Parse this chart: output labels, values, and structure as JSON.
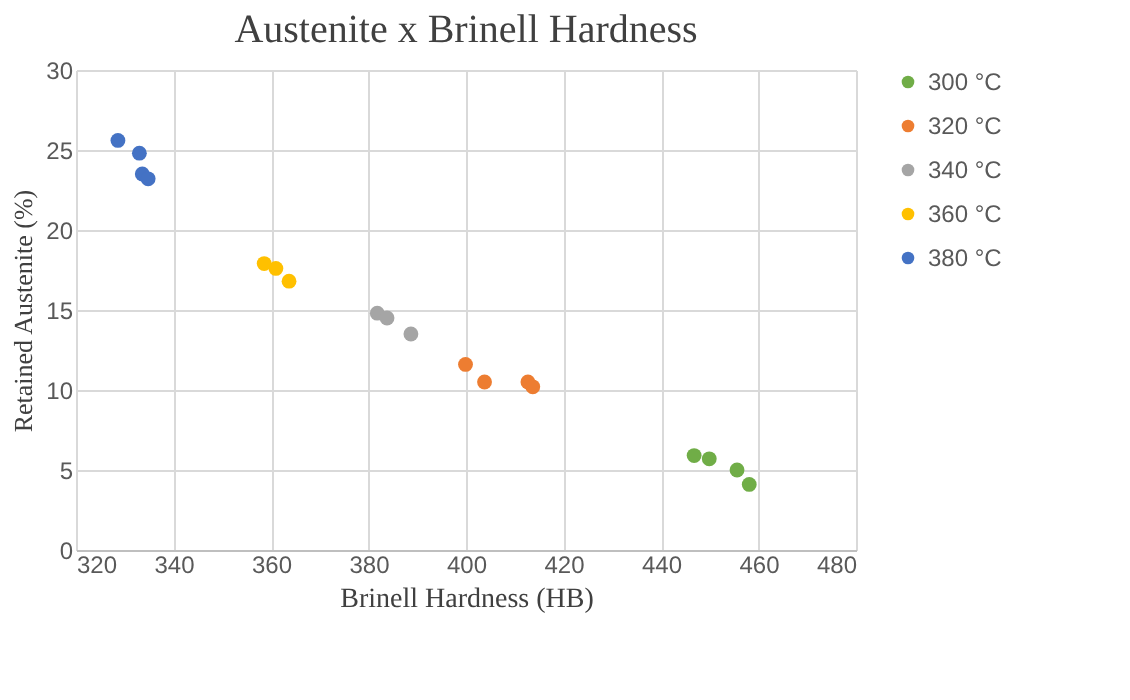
{
  "chart_data": {
    "type": "scatter",
    "title": "Austenite x Brinell Hardness",
    "xlabel": "Brinell Hardness (HB)",
    "ylabel": "Retained Austenite (%)",
    "xlim": [
      320,
      480
    ],
    "xticks": [
      320,
      340,
      360,
      380,
      400,
      420,
      440,
      460,
      480
    ],
    "ylim": [
      0,
      30
    ],
    "yticks": [
      0,
      5,
      10,
      15,
      20,
      25,
      30
    ],
    "grid": true,
    "legend": "right",
    "marker": "circle",
    "series": [
      {
        "name": "300 °C",
        "color": "#70ad47",
        "x": [
          446.8,
          449.9,
          455.6,
          458.1
        ],
        "values": [
          5.9,
          5.7,
          5.0,
          4.1
        ]
      },
      {
        "name": "320 °C",
        "color": "#ed7d31",
        "x": [
          399.9,
          403.8,
          412.7,
          413.7
        ],
        "values": [
          11.6,
          10.5,
          10.5,
          10.2
        ]
      },
      {
        "name": "340 °C",
        "color": "#a5a5a5",
        "x": [
          381.8,
          383.8,
          388.7
        ],
        "values": [
          14.8,
          14.5,
          13.5
        ]
      },
      {
        "name": "360 °C",
        "color": "#ffc000",
        "x": [
          358.6,
          361.0,
          363.7
        ],
        "values": [
          17.9,
          17.6,
          16.8
        ]
      },
      {
        "name": "380 °C",
        "color": "#4472c4",
        "x": [
          328.6,
          333.0,
          333.6,
          334.8
        ],
        "values": [
          25.6,
          24.8,
          23.5,
          23.2
        ]
      }
    ]
  }
}
